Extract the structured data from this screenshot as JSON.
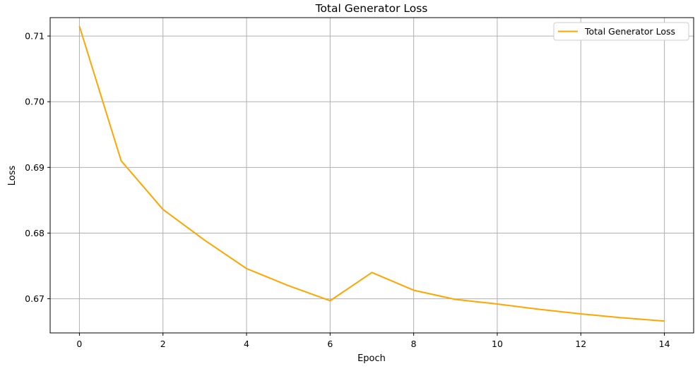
{
  "chart_data": {
    "type": "line",
    "title": "Total Generator Loss",
    "xlabel": "Epoch",
    "ylabel": "Loss",
    "xlim": [
      -0.7,
      14.7
    ],
    "ylim": [
      0.6648,
      0.7128
    ],
    "xticks": [
      0,
      2,
      4,
      6,
      8,
      10,
      12,
      14
    ],
    "yticks": [
      0.67,
      0.68,
      0.69,
      0.7,
      0.71
    ],
    "ytick_labels": [
      "0.67",
      "0.68",
      "0.69",
      "0.70",
      "0.71"
    ],
    "grid": true,
    "legend_position": "top-right",
    "series": [
      {
        "name": "Total Generator Loss",
        "color": "#FFA500",
        "x": [
          0,
          1,
          2,
          3,
          4,
          5,
          6,
          7,
          8,
          9,
          10,
          11,
          12,
          13,
          14
        ],
        "y": [
          0.7115,
          0.691,
          0.6836,
          0.6789,
          0.6746,
          0.672,
          0.6697,
          0.674,
          0.6713,
          0.6699,
          0.6692,
          0.6684,
          0.6677,
          0.6671,
          0.6666
        ]
      }
    ]
  }
}
